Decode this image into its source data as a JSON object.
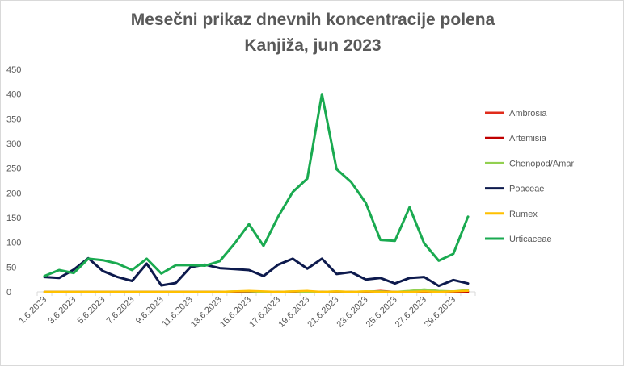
{
  "chart_data": {
    "type": "line",
    "title": [
      "Mesečni prikaz dnevnih koncentracije polena",
      "Kanjiža, jun 2023"
    ],
    "xlabel": "",
    "ylabel": "",
    "ylim": [
      0,
      450
    ],
    "yticks": [
      0,
      50,
      100,
      150,
      200,
      250,
      300,
      350,
      400,
      450
    ],
    "grid": false,
    "legend_position": "right",
    "x": [
      "1.6.2023",
      "2.6.2023",
      "3.6.2023",
      "4.6.2023",
      "5.6.2023",
      "6.6.2023",
      "7.6.2023",
      "8.6.2023",
      "9.6.2023",
      "10.6.2023",
      "11.6.2023",
      "12.6.2023",
      "13.6.2023",
      "14.6.2023",
      "15.6.2023",
      "16.6.2023",
      "17.6.2023",
      "18.6.2023",
      "19.6.2023",
      "20.6.2023",
      "21.6.2023",
      "22.6.2023",
      "23.6.2023",
      "24.6.2023",
      "25.6.2023",
      "26.6.2023",
      "27.6.2023",
      "28.6.2023",
      "29.6.2023",
      "30.6.2023"
    ],
    "xticks_shown": [
      "1.6.2023",
      "3.6.2023",
      "5.6.2023",
      "7.6.2023",
      "9.6.2023",
      "11.6.2023",
      "13.6.2023",
      "15.6.2023",
      "17.6.2023",
      "19.6.2023",
      "21.6.2023",
      "23.6.2023",
      "25.6.2023",
      "27.6.2023",
      "29.6.2023"
    ],
    "series": [
      {
        "name": "Ambrosia",
        "color": "#e02b1b",
        "values": [
          0,
          0,
          0,
          0,
          0,
          0,
          0,
          0,
          0,
          0,
          0,
          0,
          0,
          0,
          0,
          0,
          0,
          0,
          0,
          0,
          0,
          0,
          0,
          2,
          0,
          0,
          2,
          1,
          1,
          1
        ]
      },
      {
        "name": "Artemisia",
        "color": "#c00000",
        "values": [
          0,
          0,
          0,
          0,
          0,
          0,
          0,
          0,
          0,
          0,
          0,
          0,
          0,
          0,
          0,
          0,
          0,
          0,
          0,
          0,
          0,
          0,
          0,
          0,
          0,
          0,
          0,
          0,
          0,
          0
        ]
      },
      {
        "name": "Chenopod/Amar",
        "color": "#92d050",
        "values": [
          0,
          0,
          0,
          0,
          0,
          0,
          0,
          0,
          0,
          0,
          0,
          0,
          0,
          1,
          1,
          0,
          0,
          1,
          0,
          0,
          1,
          0,
          1,
          1,
          0,
          2,
          5,
          2,
          1,
          4
        ]
      },
      {
        "name": "Poaceae",
        "color": "#0d1a4d",
        "values": [
          30,
          28,
          45,
          68,
          42,
          30,
          22,
          57,
          13,
          18,
          50,
          55,
          48,
          46,
          44,
          32,
          55,
          67,
          47,
          67,
          36,
          40,
          25,
          28,
          17,
          28,
          30,
          12,
          24,
          17
        ]
      },
      {
        "name": "Rumex",
        "color": "#ffc000",
        "values": [
          0,
          0,
          0,
          0,
          0,
          0,
          0,
          0,
          0,
          0,
          0,
          0,
          0,
          1,
          2,
          1,
          0,
          1,
          2,
          0,
          1,
          0,
          1,
          0,
          0,
          0,
          1,
          0,
          1,
          2
        ]
      },
      {
        "name": "Urticaceae",
        "color": "#1aaa50",
        "values": [
          32,
          44,
          38,
          67,
          64,
          57,
          44,
          67,
          37,
          54,
          54,
          53,
          62,
          97,
          137,
          93,
          152,
          202,
          229,
          400,
          248,
          222,
          180,
          105,
          103,
          171,
          98,
          63,
          77,
          152
        ]
      }
    ]
  }
}
